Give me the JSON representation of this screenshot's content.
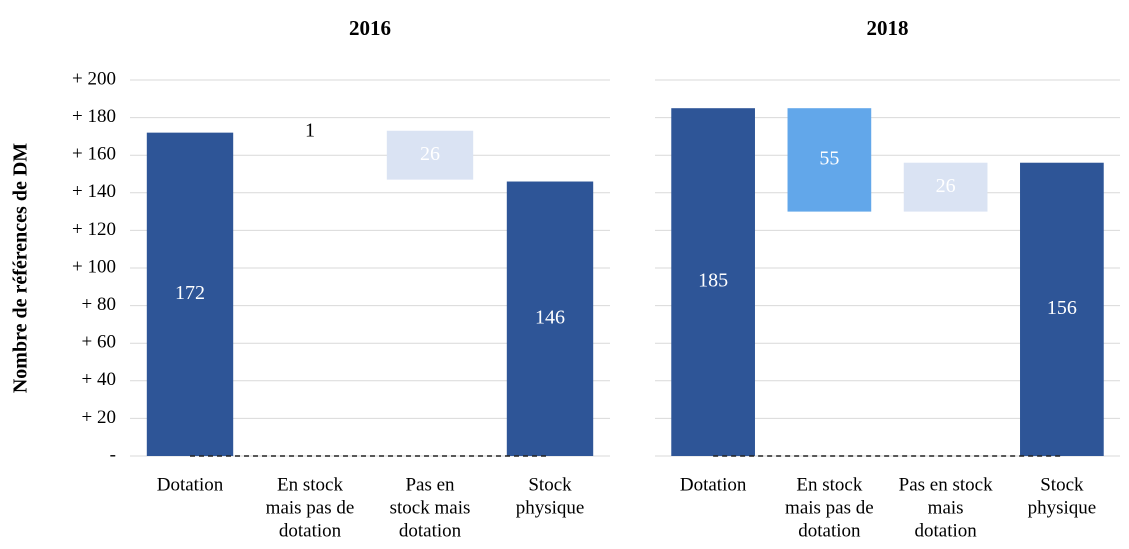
{
  "chart_data": [
    {
      "type": "waterfall",
      "title": "2016",
      "ylabel": "Nombre de références de DM",
      "categories": [
        [
          "Dotation"
        ],
        [
          "En stock",
          "mais pas de",
          "dotation"
        ],
        [
          "Pas en",
          "stock mais",
          "dotation"
        ],
        [
          "Stock",
          "physique"
        ]
      ],
      "values": [
        172,
        1,
        26,
        146
      ],
      "steps": [
        "total",
        "up",
        "down",
        "total"
      ],
      "colors": [
        "#2e5597",
        "#ffffff",
        "#dae3f3",
        "#2e5597"
      ],
      "label_colors": [
        "#ffffff",
        "#000000",
        "#ffffff",
        "#ffffff"
      ],
      "ylim": [
        0,
        200
      ],
      "yticks": [
        {
          "value": 0,
          "label": "-"
        },
        {
          "value": 20,
          "label": "+ 20"
        },
        {
          "value": 40,
          "label": "+ 40"
        },
        {
          "value": 60,
          "label": "+ 60"
        },
        {
          "value": 80,
          "label": "+ 80"
        },
        {
          "value": 100,
          "label": "+ 100"
        },
        {
          "value": 120,
          "label": "+ 120"
        },
        {
          "value": 140,
          "label": "+ 140"
        },
        {
          "value": 160,
          "label": "+ 160"
        },
        {
          "value": 180,
          "label": "+ 180"
        },
        {
          "value": 200,
          "label": "+ 200"
        }
      ],
      "grid": true
    },
    {
      "type": "waterfall",
      "title": "2018",
      "categories": [
        [
          "Dotation"
        ],
        [
          "En stock",
          "mais pas de",
          "dotation"
        ],
        [
          "Pas en stock",
          "mais",
          "dotation"
        ],
        [
          "Stock",
          "physique"
        ]
      ],
      "values": [
        185,
        55,
        26,
        156
      ],
      "steps": [
        "total",
        "down",
        "up",
        "total"
      ],
      "colors": [
        "#2e5597",
        "#62a7ea",
        "#dae3f3",
        "#2e5597"
      ],
      "label_colors": [
        "#ffffff",
        "#ffffff",
        "#ffffff",
        "#ffffff"
      ],
      "ylim": [
        0,
        200
      ],
      "yticks": [
        0,
        20,
        40,
        60,
        80,
        100,
        120,
        140,
        160,
        180,
        200
      ],
      "grid": true
    }
  ]
}
